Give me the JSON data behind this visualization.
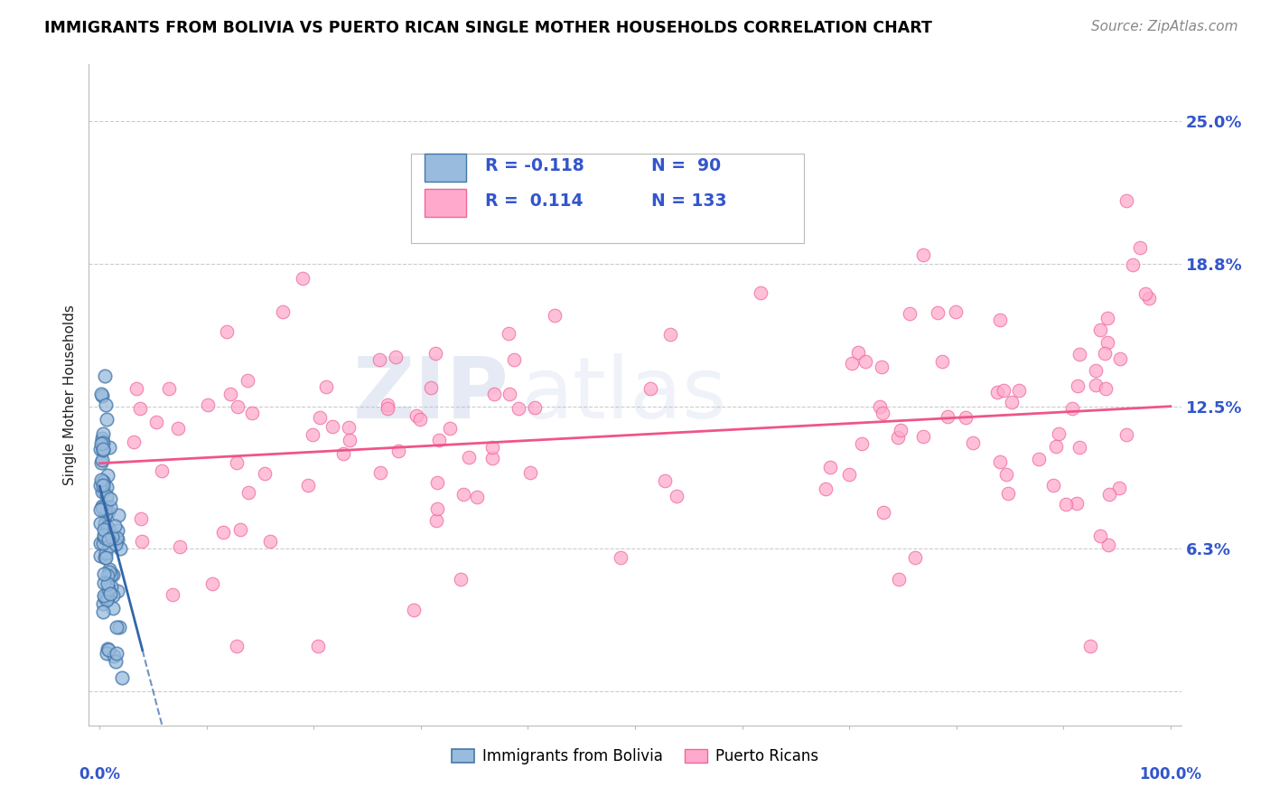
{
  "title": "IMMIGRANTS FROM BOLIVIA VS PUERTO RICAN SINGLE MOTHER HOUSEHOLDS CORRELATION CHART",
  "source": "Source: ZipAtlas.com",
  "ylabel": "Single Mother Households",
  "ytick_vals": [
    0.0,
    0.0625,
    0.125,
    0.1875,
    0.25
  ],
  "ytick_labels": [
    "",
    "6.3%",
    "12.5%",
    "18.8%",
    "25.0%"
  ],
  "xlim": [
    -0.01,
    1.01
  ],
  "ylim": [
    -0.015,
    0.275
  ],
  "R_blue": -0.118,
  "N_blue": 90,
  "R_pink": 0.114,
  "N_pink": 133,
  "blue_face_color": "#99BBDD",
  "blue_edge_color": "#4477AA",
  "pink_face_color": "#FFAACC",
  "pink_edge_color": "#EE6699",
  "blue_line_color": "#3366AA",
  "pink_line_color": "#EE5588",
  "legend_R_color": "#3355CC",
  "ylabel_color": "#222222",
  "grid_color": "#CCCCCC",
  "spine_color": "#BBBBBB",
  "source_color": "#888888",
  "tick_label_color": "#3355CC",
  "watermark_zip_color": "#AABBDD",
  "watermark_atlas_color": "#AABBDD"
}
